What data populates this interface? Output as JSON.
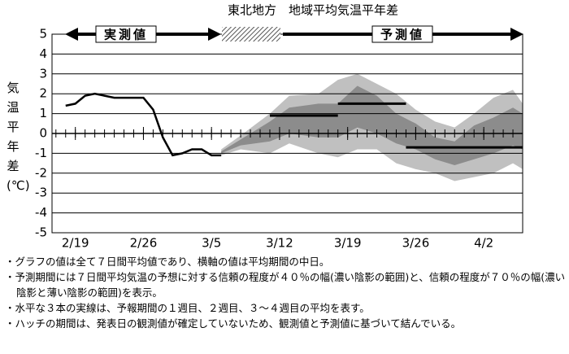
{
  "chart_data": {
    "type": "line",
    "title": "東北地方　地域平均気温平年差",
    "y_label": "気温平年差(℃)",
    "observed_label": "実測値",
    "forecast_label": "予測値",
    "xlim": [
      -2.4,
      46.0
    ],
    "ylim": [
      -5,
      5
    ],
    "yticks": [
      -5,
      -4,
      -3,
      -2,
      -1,
      0,
      1,
      2,
      3,
      4,
      5
    ],
    "xticks": [
      {
        "value": 0,
        "label": "2/19"
      },
      {
        "value": 7,
        "label": "2/26"
      },
      {
        "value": 14,
        "label": "3/5"
      },
      {
        "value": 21,
        "label": "3/12"
      },
      {
        "value": 28,
        "label": "3/19"
      },
      {
        "value": 35,
        "label": "3/26"
      },
      {
        "value": 42,
        "label": "4/2"
      }
    ],
    "grid": true,
    "observed": {
      "color": "#000000",
      "x": [
        -1,
        0,
        1,
        2,
        3,
        4,
        5,
        6,
        7,
        8,
        9,
        10,
        11,
        12,
        13,
        14,
        15
      ],
      "values": [
        1.4,
        1.5,
        1.9,
        2.0,
        1.9,
        1.8,
        1.8,
        1.8,
        1.8,
        1.2,
        -0.2,
        -1.1,
        -1.0,
        -0.8,
        -0.8,
        -1.1,
        -1.1
      ]
    },
    "bands": {
      "x": [
        15,
        17,
        20,
        22,
        25,
        27,
        29,
        31,
        33,
        35,
        37,
        39,
        41,
        43,
        45,
        46
      ],
      "range70": {
        "color": "#c0c0c0",
        "lower": [
          -1.1,
          -0.8,
          -1.0,
          -0.5,
          -1.0,
          -1.2,
          -0.8,
          -0.8,
          -1.5,
          -1.8,
          -2.0,
          -2.4,
          -2.2,
          -2.0,
          -1.5,
          -1.8
        ],
        "upper": [
          -0.8,
          -0.1,
          1.0,
          1.9,
          2.0,
          2.7,
          3.0,
          2.5,
          2.0,
          1.2,
          0.6,
          0.3,
          1.0,
          1.8,
          2.2,
          1.5
        ]
      },
      "range40": {
        "color": "#8c8c8c",
        "lower": [
          -1.0,
          -0.6,
          -0.4,
          0.0,
          -0.2,
          -0.2,
          0.3,
          0.0,
          -0.5,
          -0.8,
          -1.3,
          -1.6,
          -1.3,
          -1.0,
          -0.6,
          -0.8
        ],
        "upper": [
          -0.9,
          -0.3,
          0.6,
          1.3,
          1.5,
          1.5,
          2.4,
          1.9,
          1.0,
          0.5,
          -0.2,
          -0.4,
          0.4,
          0.8,
          1.3,
          1.0
        ]
      }
    },
    "period_means": [
      {
        "x": [
          20,
          27
        ],
        "values": [
          0.9,
          0.9
        ]
      },
      {
        "x": [
          27,
          34
        ],
        "values": [
          1.5,
          1.5
        ]
      },
      {
        "x": [
          34,
          46
        ],
        "values": [
          -0.7,
          -0.7
        ]
      }
    ]
  },
  "notes": [
    "グラフの値は全て７日間平均値であり、横軸の値は平均期間の中日。",
    "予測期間には７日間平均気温の予想に対する信頼の程度が４０％の幅(濃い陰影の範囲)と、信頼の程度が７０％の幅(濃い陰影と薄い陰影の範囲)を表示。",
    "水平な３本の実線は、予報期間の１週目、２週目、３～４週目の平均を表す。",
    "ハッチの期間は、発表日の観測値が確定していないため、観測値と予測値に基づいて結んでいる。"
  ]
}
